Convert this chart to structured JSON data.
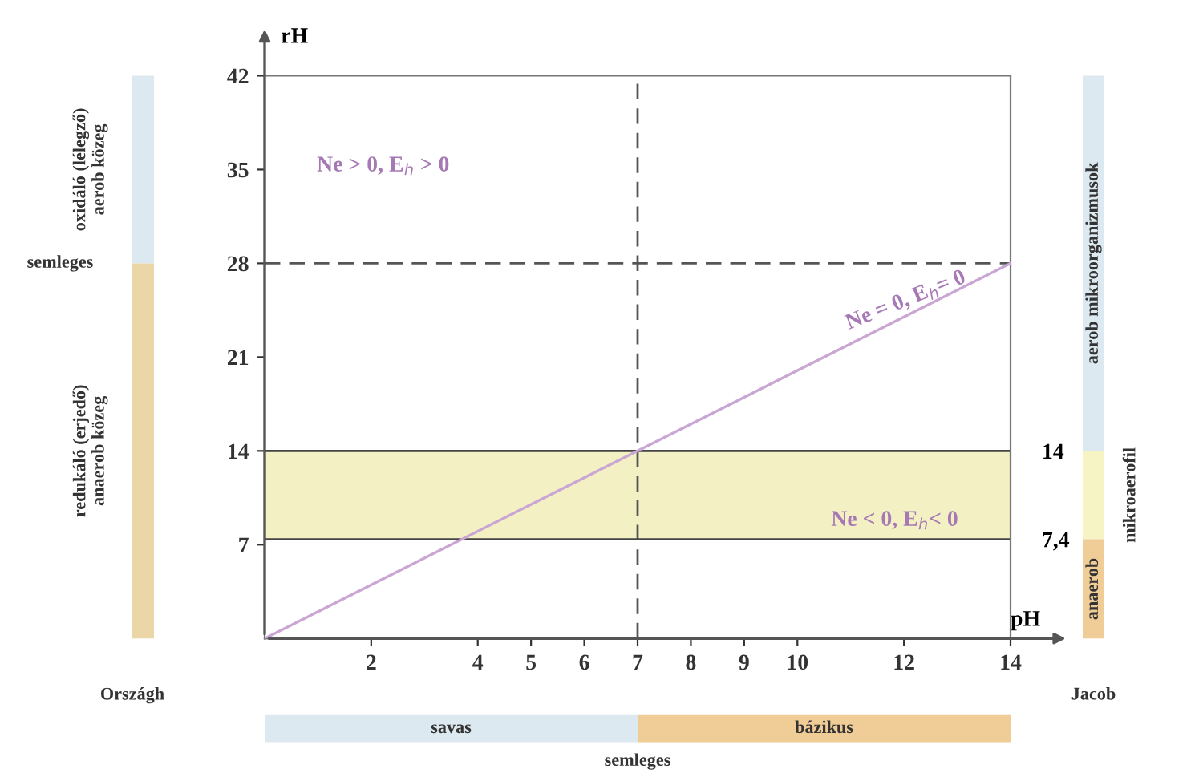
{
  "chart_data": {
    "type": "line",
    "xlabel": "pH",
    "ylabel": "rH",
    "x": [
      0,
      14
    ],
    "series": [
      {
        "color": "#c9a6d3",
        "values": [
          0,
          28
        ]
      }
    ],
    "xlim": [
      0,
      14
    ],
    "ylim": [
      0,
      42
    ],
    "xticks": [
      2,
      4,
      5,
      6,
      7,
      8,
      9,
      10,
      12,
      14
    ],
    "yticks": [
      7,
      14,
      21,
      28,
      35,
      42
    ],
    "y2lim": [
      0,
      42
    ],
    "y2ticks": [
      14,
      {
        "value": 7.4,
        "label": "7,4"
      }
    ],
    "ref_lines": [
      {
        "axis": "y",
        "value": 28,
        "color": "#555555",
        "line_style": "dashed"
      },
      {
        "axis": "x",
        "value": 7,
        "color": "#555555",
        "line_style": "dashed"
      },
      {
        "axis": "y",
        "value": 14,
        "color": "#444444",
        "line_style": "solid"
      },
      {
        "axis": "y",
        "value": 7.4,
        "color": "#444444",
        "line_style": "solid"
      }
    ],
    "bands": [
      {
        "axis": "y",
        "from": 7.4,
        "to": 14,
        "color": "#f3f0c4"
      }
    ],
    "annotations": [
      "Ne > 0, E$_{h}$ > 0",
      "Ne = 0, E$_{h}$= 0",
      "Ne < 0, E$_{h}$< 0",
      "oxidáló (lélegző)\naerob közeg",
      "semleges",
      "redukáló (erjedő)\nanaerob közeg",
      "Országh",
      "aerob mikroorganizmusok",
      "mikroaerofil",
      "anaerob",
      "Jacob",
      "savas",
      "bázikus",
      "semleges"
    ],
    "grid": false,
    "legend": false,
    "marker": "none",
    "line_style": "solid"
  }
}
